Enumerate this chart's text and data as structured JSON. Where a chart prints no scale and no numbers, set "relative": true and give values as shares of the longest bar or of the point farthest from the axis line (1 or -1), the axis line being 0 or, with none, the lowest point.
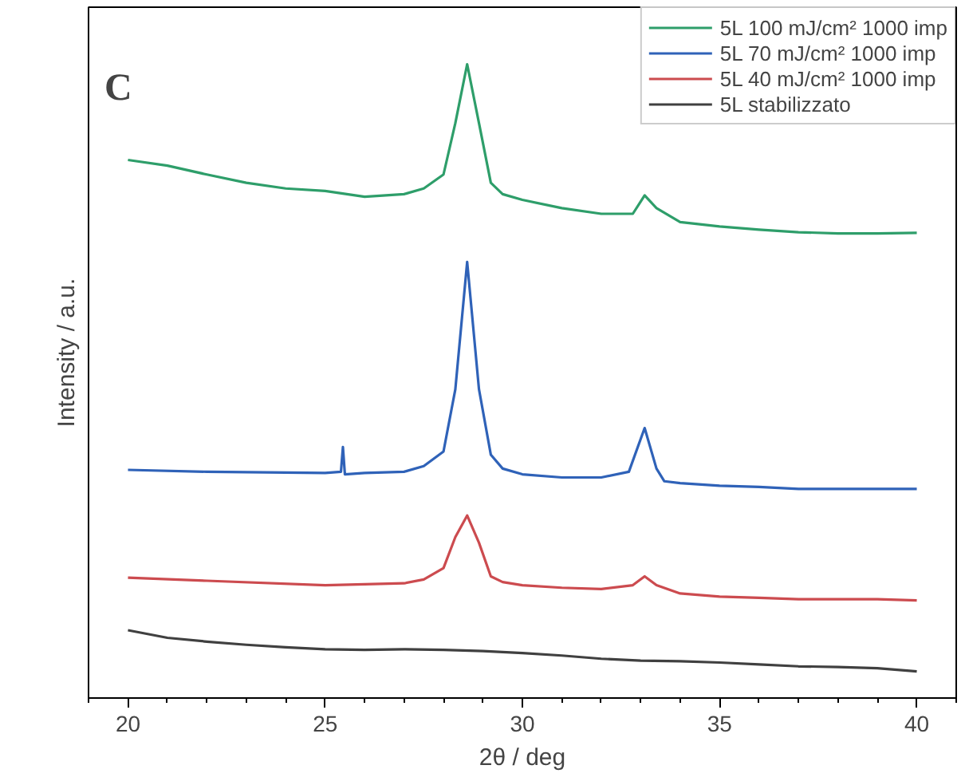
{
  "chart_data": {
    "type": "line",
    "xlabel": "2θ / deg",
    "ylabel": "Intensity / a.u.",
    "annotations": [
      "C"
    ],
    "relative": true,
    "xlim": [
      19,
      41
    ],
    "xticks": [
      20,
      25,
      30,
      35,
      40
    ],
    "grid": false,
    "legend": "top right",
    "marker": "none",
    "line_style": "solid",
    "tick_labels": "x",
    "series": [
      {
        "name": "5L 100 mJ/cm² 1000 imp",
        "color": "#2e9e6a",
        "x": [
          20,
          21,
          22,
          23,
          24,
          25,
          26,
          27,
          27.5,
          28,
          28.3,
          28.6,
          28.9,
          29.2,
          29.5,
          30,
          31,
          32,
          32.8,
          33.1,
          33.4,
          34,
          35,
          36,
          37,
          38,
          39,
          40
        ],
        "values": [
          0.849,
          0.84,
          0.826,
          0.813,
          0.804,
          0.8,
          0.791,
          0.795,
          0.804,
          0.826,
          0.907,
          1,
          0.907,
          0.813,
          0.795,
          0.786,
          0.773,
          0.764,
          0.764,
          0.793,
          0.773,
          0.751,
          0.744,
          0.739,
          0.735,
          0.733,
          0.733,
          0.734
        ]
      },
      {
        "name": "5L 70 mJ/cm² 1000 imp",
        "color": "#2f62b8",
        "x": [
          20,
          22,
          25,
          25.4,
          25.45,
          25.5,
          26,
          27,
          27.5,
          28,
          28.3,
          28.6,
          28.9,
          29.2,
          29.5,
          30,
          31,
          32,
          32.7,
          33.1,
          33.4,
          33.6,
          34,
          35,
          36,
          37,
          38,
          39,
          40
        ],
        "values": [
          0.36,
          0.357,
          0.355,
          0.357,
          0.396,
          0.353,
          0.355,
          0.357,
          0.366,
          0.389,
          0.487,
          0.688,
          0.487,
          0.384,
          0.362,
          0.353,
          0.348,
          0.348,
          0.357,
          0.426,
          0.362,
          0.342,
          0.339,
          0.335,
          0.333,
          0.33,
          0.33,
          0.33,
          0.33
        ]
      },
      {
        "name": "5L 40 mJ/cm² 1000 imp",
        "color": "#cc4b4f",
        "x": [
          20,
          22,
          25,
          27,
          27.5,
          28,
          28.3,
          28.6,
          28.9,
          29.2,
          29.5,
          30,
          31,
          32,
          32.8,
          33.1,
          33.4,
          34,
          35,
          36,
          37,
          38,
          39,
          40
        ],
        "values": [
          0.19,
          0.185,
          0.178,
          0.181,
          0.187,
          0.205,
          0.254,
          0.288,
          0.245,
          0.192,
          0.183,
          0.178,
          0.174,
          0.172,
          0.178,
          0.192,
          0.178,
          0.165,
          0.16,
          0.158,
          0.156,
          0.156,
          0.156,
          0.154
        ]
      },
      {
        "name": "5L stabilizzato",
        "color": "#404040",
        "x": [
          20,
          21,
          22,
          23,
          24,
          25,
          26,
          27,
          28,
          29,
          30,
          31,
          32,
          33,
          34,
          35,
          36,
          37,
          38,
          39,
          40
        ],
        "values": [
          0.107,
          0.095,
          0.089,
          0.084,
          0.08,
          0.077,
          0.076,
          0.077,
          0.076,
          0.074,
          0.071,
          0.067,
          0.062,
          0.059,
          0.058,
          0.056,
          0.053,
          0.05,
          0.049,
          0.047,
          0.042
        ]
      }
    ]
  }
}
